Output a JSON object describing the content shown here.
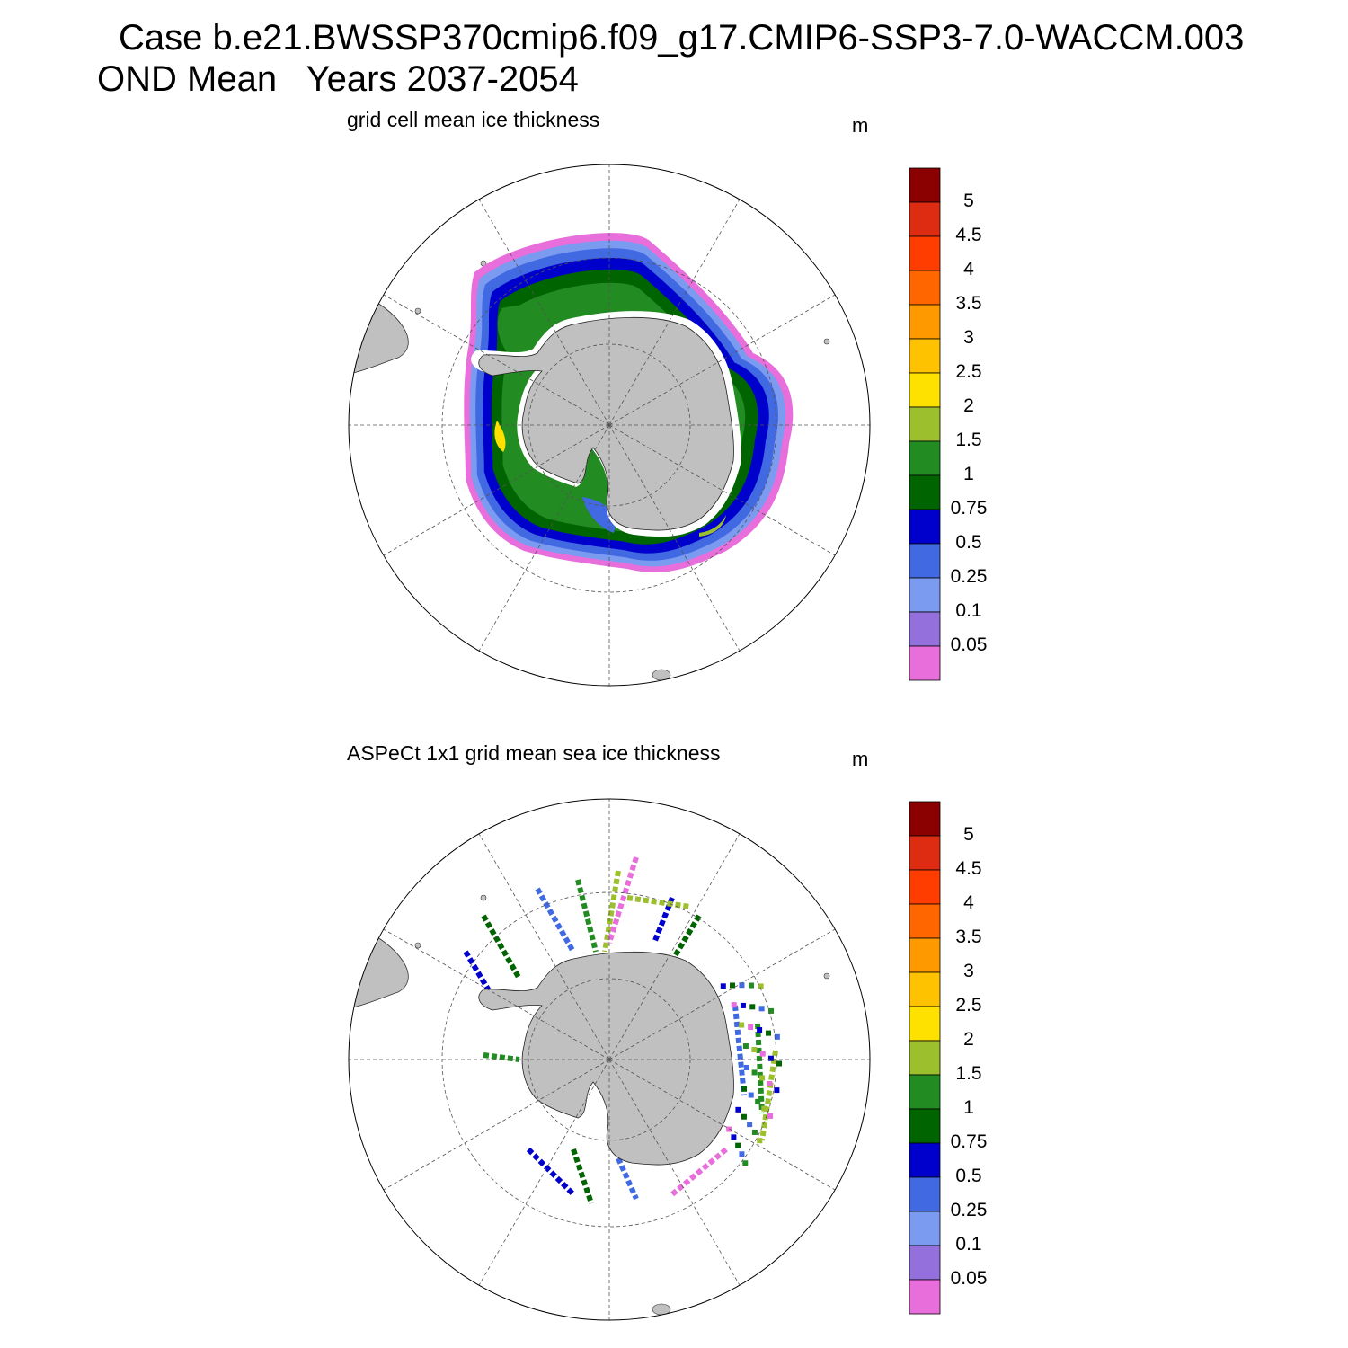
{
  "title": {
    "line1": "Case b.e21.BWSSP370cmip6.f09_g17.CMIP6-SSP3-7.0-WACCM.003",
    "line2": "OND Mean   Years 2037-2054"
  },
  "panels": [
    {
      "title": "grid cell mean ice thickness",
      "units": "m"
    },
    {
      "title": "ASPeCt 1x1 grid mean sea ice thickness",
      "units": "m"
    }
  ],
  "colorbar": {
    "labels": [
      "5",
      "4.5",
      "4",
      "3.5",
      "3",
      "2.5",
      "2",
      "1.5",
      "1",
      "0.75",
      "0.5",
      "0.25",
      "0.1",
      "0.05"
    ],
    "colors": [
      "#8b0000",
      "#dd2c12",
      "#ff3d00",
      "#ff6600",
      "#ff9900",
      "#ffc200",
      "#ffe100",
      "#9cbf2e",
      "#228b22",
      "#006400",
      "#0000cd",
      "#4169e1",
      "#7b9bf0",
      "#9370db",
      "#e86fdb"
    ]
  },
  "map": {
    "projection": "south polar stereographic",
    "land_color": "#c0c0c0",
    "ocean_color": "#ffffff"
  }
}
